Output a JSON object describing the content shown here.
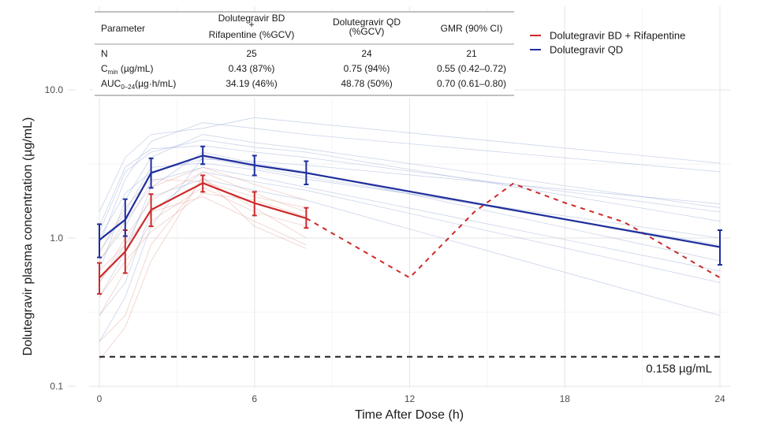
{
  "chart_data": {
    "type": "line",
    "title": "",
    "xlabel": "Time After Dose (h)",
    "ylabel": "Dolutegravir plasma concentration (µg/mL)",
    "x_ticks": [
      0,
      6,
      12,
      18,
      24
    ],
    "x_tick_labels": [
      "0",
      "6",
      "12",
      "18",
      "24"
    ],
    "xlim": [
      0,
      24
    ],
    "y_scale": "log10",
    "ylim": [
      0.1,
      15
    ],
    "y_ticks": [
      0.1,
      1.0,
      10.0
    ],
    "y_tick_labels": [
      "0.1",
      "1.0",
      "10.0"
    ],
    "grid": true,
    "legend_position": "top-right",
    "series": [
      {
        "name": "Dolutegravir BD + Rifapentine",
        "color": "#cc2a2a",
        "x": [
          0,
          1,
          2,
          4,
          6,
          8
        ],
        "values": [
          0.54,
          0.81,
          1.55,
          2.35,
          1.72,
          1.36
        ],
        "err_low": [
          0.42,
          0.58,
          1.2,
          2.05,
          1.42,
          1.17
        ],
        "err_high": [
          0.68,
          1.13,
          1.98,
          2.65,
          2.05,
          1.6
        ],
        "projected": {
          "style": "dashed",
          "x": [
            8,
            12,
            14.5,
            16,
            18,
            20.3,
            24
          ],
          "values": [
            1.36,
            0.54,
            1.5,
            2.33,
            1.73,
            1.28,
            0.54
          ]
        }
      },
      {
        "name": "Dolutegravir QD",
        "color": "#1f2f9c",
        "x": [
          0,
          1,
          2,
          4,
          6,
          8,
          24
        ],
        "values": [
          0.97,
          1.33,
          2.75,
          3.6,
          3.1,
          2.75,
          0.87
        ],
        "err_low": [
          0.74,
          1.03,
          2.18,
          3.15,
          2.65,
          2.3,
          0.66
        ],
        "err_high": [
          1.24,
          1.83,
          3.45,
          4.15,
          3.6,
          3.3,
          1.13
        ]
      }
    ],
    "reference_line": {
      "value": 0.158,
      "label": "0.158 µg/mL",
      "style": "dashed",
      "color": "#1a1a1a"
    },
    "individual_profiles": {
      "qd_color": "#9fb0d8",
      "bd_color": "#e3a79a",
      "qd": [
        [
          [
            0,
            0.9
          ],
          [
            1,
            2.5
          ],
          [
            2,
            4.5
          ],
          [
            4,
            6.0
          ],
          [
            6,
            5.5
          ],
          [
            8,
            5.0
          ],
          [
            24,
            2.8
          ]
        ],
        [
          [
            0,
            0.6
          ],
          [
            1,
            1.8
          ],
          [
            2,
            3.5
          ],
          [
            4,
            5.0
          ],
          [
            6,
            4.4
          ],
          [
            8,
            4.0
          ],
          [
            24,
            1.6
          ]
        ],
        [
          [
            0,
            1.2
          ],
          [
            1,
            3.0
          ],
          [
            2,
            4.0
          ],
          [
            4,
            4.2
          ],
          [
            6,
            3.8
          ],
          [
            8,
            3.5
          ],
          [
            24,
            1.5
          ]
        ],
        [
          [
            0,
            0.4
          ],
          [
            1,
            0.8
          ],
          [
            2,
            2.2
          ],
          [
            4,
            3.8
          ],
          [
            6,
            3.2
          ],
          [
            8,
            2.8
          ],
          [
            24,
            0.7
          ]
        ],
        [
          [
            0,
            0.8
          ],
          [
            1,
            1.5
          ],
          [
            2,
            3.0
          ],
          [
            4,
            3.2
          ],
          [
            6,
            2.9
          ],
          [
            8,
            2.5
          ],
          [
            24,
            1.0
          ]
        ],
        [
          [
            0,
            0.3
          ],
          [
            1,
            0.5
          ],
          [
            2,
            1.5
          ],
          [
            4,
            2.8
          ],
          [
            6,
            2.4
          ],
          [
            8,
            2.1
          ],
          [
            24,
            0.5
          ]
        ],
        [
          [
            0,
            1.5
          ],
          [
            1,
            3.5
          ],
          [
            2,
            5.0
          ],
          [
            4,
            5.5
          ],
          [
            6,
            6.5
          ],
          [
            8,
            6.0
          ],
          [
            24,
            3.2
          ]
        ],
        [
          [
            0,
            0.7
          ],
          [
            1,
            1.2
          ],
          [
            2,
            2.4
          ],
          [
            4,
            3.0
          ],
          [
            6,
            2.6
          ],
          [
            8,
            2.2
          ],
          [
            24,
            0.6
          ]
        ],
        [
          [
            0,
            1.0
          ],
          [
            1,
            2.0
          ],
          [
            2,
            2.8
          ],
          [
            4,
            3.4
          ],
          [
            6,
            3.3
          ],
          [
            8,
            3.1
          ],
          [
            24,
            1.7
          ]
        ],
        [
          [
            0,
            0.5
          ],
          [
            1,
            0.9
          ],
          [
            2,
            1.9
          ],
          [
            4,
            2.5
          ],
          [
            6,
            2.1
          ],
          [
            8,
            1.8
          ],
          [
            24,
            0.3
          ]
        ],
        [
          [
            0,
            0.2
          ],
          [
            1,
            0.4
          ],
          [
            2,
            1.2
          ],
          [
            4,
            3.5
          ],
          [
            6,
            3.0
          ],
          [
            8,
            2.6
          ],
          [
            24,
            0.9
          ]
        ],
        [
          [
            0,
            1.1
          ],
          [
            1,
            2.8
          ],
          [
            2,
            3.8
          ],
          [
            4,
            4.6
          ],
          [
            6,
            4.1
          ],
          [
            8,
            3.8
          ],
          [
            24,
            1.3
          ]
        ]
      ],
      "bd": [
        [
          [
            0,
            0.5
          ],
          [
            1,
            1.0
          ],
          [
            2,
            1.8
          ],
          [
            4,
            2.8
          ],
          [
            6,
            2.0
          ],
          [
            8,
            1.5
          ]
        ],
        [
          [
            0,
            0.3
          ],
          [
            1,
            0.6
          ],
          [
            2,
            1.3
          ],
          [
            4,
            2.2
          ],
          [
            6,
            1.5
          ],
          [
            8,
            1.2
          ]
        ],
        [
          [
            0,
            0.7
          ],
          [
            1,
            1.3
          ],
          [
            2,
            2.2
          ],
          [
            4,
            3.0
          ],
          [
            6,
            2.3
          ],
          [
            8,
            1.8
          ]
        ],
        [
          [
            0,
            0.2
          ],
          [
            1,
            0.3
          ],
          [
            2,
            0.9
          ],
          [
            4,
            2.5
          ],
          [
            6,
            1.6
          ],
          [
            8,
            1.0
          ]
        ],
        [
          [
            0,
            0.6
          ],
          [
            1,
            0.9
          ],
          [
            2,
            1.5
          ],
          [
            4,
            1.9
          ],
          [
            6,
            1.3
          ],
          [
            8,
            0.9
          ]
        ],
        [
          [
            0,
            0.4
          ],
          [
            1,
            0.7
          ],
          [
            2,
            1.1
          ],
          [
            4,
            2.0
          ],
          [
            6,
            1.8
          ],
          [
            8,
            1.4
          ]
        ],
        [
          [
            0,
            0.15
          ],
          [
            1,
            0.25
          ],
          [
            2,
            0.7
          ],
          [
            4,
            2.6
          ],
          [
            6,
            1.2
          ],
          [
            8,
            0.85
          ]
        ],
        [
          [
            0,
            0.8
          ],
          [
            1,
            1.6
          ],
          [
            2,
            2.5
          ],
          [
            4,
            2.4
          ],
          [
            6,
            1.9
          ],
          [
            8,
            1.6
          ]
        ]
      ]
    },
    "table": {
      "headers": [
        "Parameter",
        "Dolutegravir BD + Rifapentine (%GCV)",
        "Dolutegravir QD (%GCV)",
        "GMR (90% CI)"
      ],
      "header_lines": [
        [
          "Parameter"
        ],
        [
          "Dolutegravir BD",
          "+",
          "Rifapentine (%GCV)"
        ],
        [
          "Dolutegravir QD",
          "(%GCV)"
        ],
        [
          "GMR (90% CI)"
        ]
      ],
      "rows": [
        {
          "param": "N",
          "param_sub": "",
          "param_suffix": "",
          "bd": "25",
          "qd": "24",
          "gmr": "21"
        },
        {
          "param": "C",
          "param_sub": "min",
          "param_suffix": " (µg/mL)",
          "bd": "0.43 (87%)",
          "qd": "0.75 (94%)",
          "gmr": "0.55 (0.42–0.72)"
        },
        {
          "param": "AUC",
          "param_sub": "0–24",
          "param_suffix": "(µg·h/mL)",
          "bd": "34.19 (46%)",
          "qd": "48.78 (50%)",
          "gmr": "0.70 (0.61–0.80)"
        }
      ]
    }
  }
}
